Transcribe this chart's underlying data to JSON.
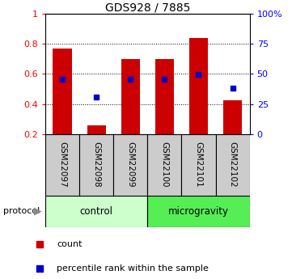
{
  "title": "GDS928 / 7885",
  "samples": [
    "GSM22097",
    "GSM22098",
    "GSM22099",
    "GSM22100",
    "GSM22101",
    "GSM22102"
  ],
  "bar_heights": [
    0.77,
    0.255,
    0.7,
    0.7,
    0.84,
    0.425
  ],
  "blue_squares": [
    0.565,
    0.445,
    0.565,
    0.565,
    0.595,
    0.505
  ],
  "ylim_left": [
    0.2,
    1.0
  ],
  "ylim_right": [
    0,
    100
  ],
  "yticks_left": [
    0.2,
    0.4,
    0.6,
    0.8,
    1.0
  ],
  "ytick_labels_left": [
    "0.2",
    "0.4",
    "0.6",
    "0.8",
    "1"
  ],
  "yticks_right": [
    0,
    25,
    50,
    75,
    100
  ],
  "ytick_labels_right": [
    "0",
    "25",
    "50",
    "75",
    "100%"
  ],
  "bar_color": "#cc0000",
  "blue_color": "#0000cc",
  "control_color": "#ccffcc",
  "microgravity_color": "#55ee55",
  "sample_label_bg": "#cccccc"
}
